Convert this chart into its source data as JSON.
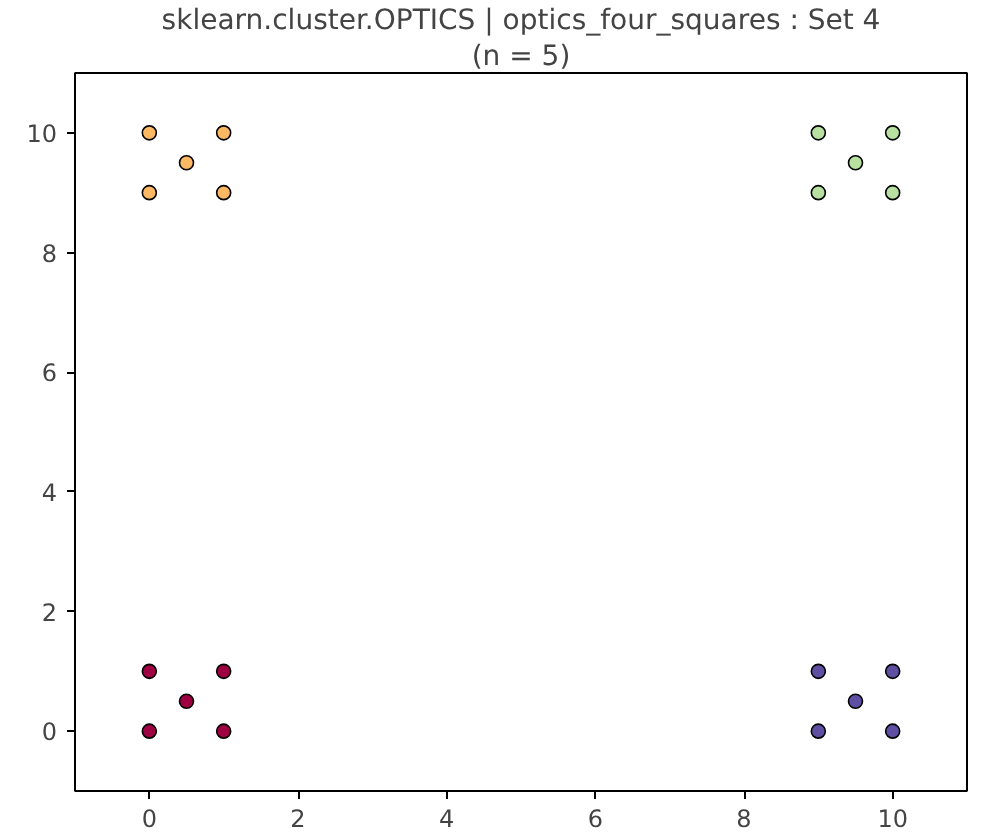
{
  "chart_data": {
    "type": "scatter",
    "title": "sklearn.cluster.OPTICS | optics_four_squares : Set 4",
    "subtitle": "(n = 5)",
    "xlim": [
      -1,
      11
    ],
    "ylim": [
      -1,
      11
    ],
    "xticks": [
      0,
      2,
      4,
      6,
      8,
      10
    ],
    "yticks": [
      0,
      2,
      4,
      6,
      8,
      10
    ],
    "grid": false,
    "marker": "circle",
    "series": [
      {
        "color": "#9e0142",
        "x": [
          0,
          0,
          1,
          1,
          0.5
        ],
        "values": [
          0,
          1,
          0,
          1,
          0.5
        ]
      },
      {
        "color": "#fdb863",
        "x": [
          0,
          0,
          1,
          1,
          0.5
        ],
        "values": [
          9,
          10,
          9,
          10,
          9.5
        ]
      },
      {
        "color": "#b8e0a0",
        "x": [
          9,
          9,
          10,
          10,
          9.5
        ],
        "values": [
          9,
          10,
          9,
          10,
          9.5
        ]
      },
      {
        "color": "#5e4fa2",
        "x": [
          9,
          9,
          10,
          10,
          9.5
        ],
        "values": [
          0,
          1,
          0,
          1,
          0.5
        ]
      }
    ]
  }
}
